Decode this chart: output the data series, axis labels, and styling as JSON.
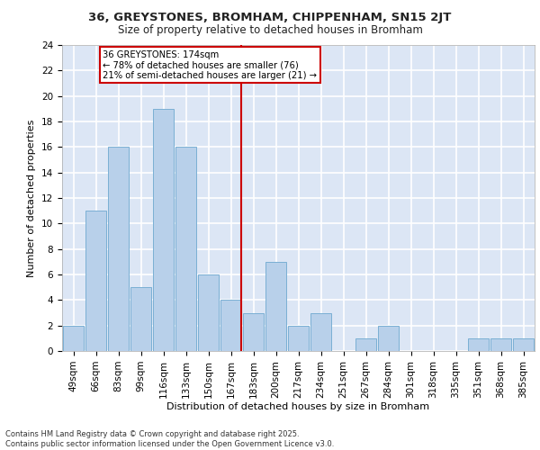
{
  "title": "36, GREYSTONES, BROMHAM, CHIPPENHAM, SN15 2JT",
  "subtitle": "Size of property relative to detached houses in Bromham",
  "xlabel": "Distribution of detached houses by size in Bromham",
  "ylabel": "Number of detached properties",
  "categories": [
    "49sqm",
    "66sqm",
    "83sqm",
    "99sqm",
    "116sqm",
    "133sqm",
    "150sqm",
    "167sqm",
    "183sqm",
    "200sqm",
    "217sqm",
    "234sqm",
    "251sqm",
    "267sqm",
    "284sqm",
    "301sqm",
    "318sqm",
    "335sqm",
    "351sqm",
    "368sqm",
    "385sqm"
  ],
  "values": [
    2,
    11,
    16,
    5,
    19,
    16,
    6,
    4,
    3,
    7,
    2,
    3,
    0,
    1,
    2,
    0,
    0,
    0,
    1,
    1,
    1
  ],
  "bar_color": "#b8d0ea",
  "bar_edge_color": "#7aafd4",
  "background_color": "#dce6f5",
  "grid_color": "#ffffff",
  "vline_color": "#cc0000",
  "annotation_title": "36 GREYSTONES: 174sqm",
  "annotation_line1": "← 78% of detached houses are smaller (76)",
  "annotation_line2": "21% of semi-detached houses are larger (21) →",
  "annotation_box_color": "#cc0000",
  "ylim": [
    0,
    24
  ],
  "yticks": [
    0,
    2,
    4,
    6,
    8,
    10,
    12,
    14,
    16,
    18,
    20,
    22,
    24
  ],
  "footer_line1": "Contains HM Land Registry data © Crown copyright and database right 2025.",
  "footer_line2": "Contains public sector information licensed under the Open Government Licence v3.0."
}
